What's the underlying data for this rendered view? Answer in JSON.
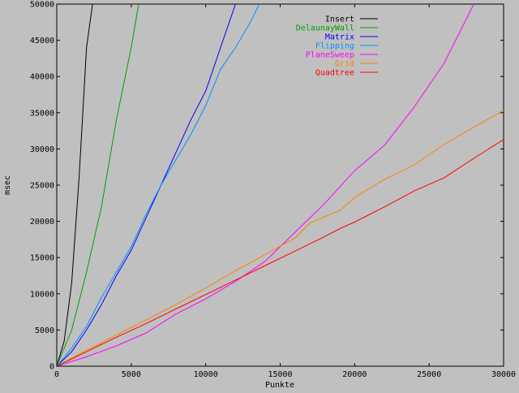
{
  "chart_data": {
    "type": "line",
    "title": "",
    "xlabel": "Punkte",
    "ylabel": "msec",
    "xlim": [
      0,
      30000
    ],
    "ylim": [
      0,
      50000
    ],
    "xticks": [
      0,
      5000,
      10000,
      15000,
      20000,
      25000,
      30000
    ],
    "yticks": [
      0,
      5000,
      10000,
      15000,
      20000,
      25000,
      30000,
      35000,
      40000,
      45000,
      50000
    ],
    "grid": false,
    "legend_position": "top-right",
    "background": "#c0c0c0",
    "series": [
      {
        "name": "Insert",
        "color": "#000000",
        "x": [
          0,
          500,
          1000,
          1500,
          2000,
          2400
        ],
        "y": [
          0,
          3500,
          11500,
          26000,
          44000,
          50000
        ]
      },
      {
        "name": "DelaunayWall",
        "color": "#00a000",
        "x": [
          0,
          1000,
          2000,
          3000,
          4000,
          5000,
          5500
        ],
        "y": [
          0,
          5000,
          13000,
          22000,
          34000,
          44000,
          50000
        ]
      },
      {
        "name": "Matrix",
        "color": "#0000ff",
        "x": [
          0,
          1000,
          2000,
          3000,
          4000,
          5000,
          6000,
          7000,
          8000,
          9000,
          10000,
          11000,
          12000
        ],
        "y": [
          0,
          2000,
          5000,
          8500,
          12500,
          16000,
          20500,
          25000,
          29500,
          34000,
          38000,
          44000,
          50000
        ]
      },
      {
        "name": "Flipping",
        "color": "#0090ff",
        "x": [
          0,
          1000,
          2000,
          3000,
          4000,
          5000,
          6000,
          7000,
          8000,
          9000,
          10000,
          11000,
          12000,
          13000,
          13600
        ],
        "y": [
          0,
          2500,
          5500,
          9500,
          13000,
          16500,
          21000,
          25000,
          28500,
          32000,
          36000,
          41000,
          44000,
          47500,
          50000
        ]
      },
      {
        "name": "PlaneSweep",
        "color": "#ff00ff",
        "x": [
          0,
          2000,
          4000,
          6000,
          8000,
          10000,
          12000,
          14000,
          15500,
          18000,
          20000,
          22000,
          24000,
          26000,
          28000
        ],
        "y": [
          0,
          1300,
          2800,
          4600,
          7200,
          9300,
          11700,
          14500,
          17500,
          22500,
          27000,
          30500,
          35800,
          41800,
          50000
        ]
      },
      {
        "name": "Grid",
        "color": "#ff8000",
        "x": [
          0,
          2000,
          4000,
          6000,
          8000,
          10000,
          12000,
          14000,
          16000,
          17000,
          19000,
          20000,
          22000,
          24000,
          26000,
          28000,
          30000
        ],
        "y": [
          0,
          2200,
          4300,
          6400,
          8500,
          10800,
          13200,
          15400,
          17700,
          19800,
          21500,
          23300,
          25800,
          27800,
          30600,
          33000,
          35300
        ]
      },
      {
        "name": "Quadtree",
        "color": "#ff0000",
        "x": [
          0,
          2000,
          4000,
          6000,
          8000,
          10000,
          12000,
          14000,
          16000,
          18000,
          19000,
          20000,
          22000,
          24000,
          26000,
          28000,
          30000
        ],
        "y": [
          0,
          2000,
          4000,
          5900,
          7900,
          9900,
          11900,
          13900,
          15900,
          17900,
          19000,
          19900,
          22000,
          24200,
          26000,
          28700,
          31300
        ]
      }
    ]
  }
}
